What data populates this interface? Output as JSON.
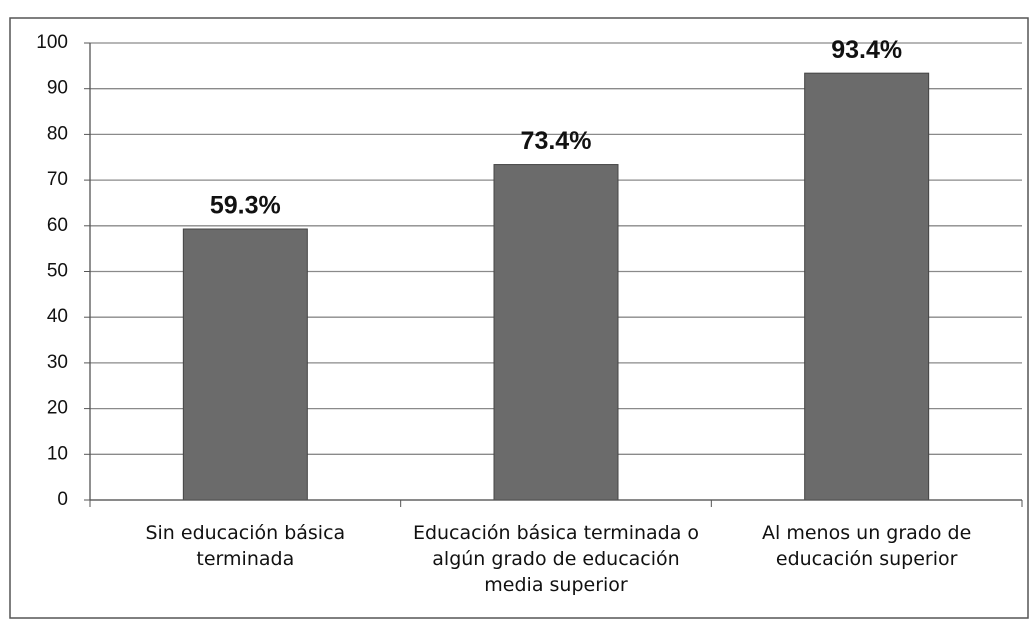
{
  "chart_data": {
    "type": "bar",
    "categories": [
      "Sin educación básica terminada",
      "Educación básica terminada o algún grado de educación media superior",
      "Al menos un grado de educación superior"
    ],
    "values": [
      59.3,
      73.4,
      93.4
    ],
    "value_labels": [
      "59.3%",
      "73.4%",
      "93.4%"
    ],
    "color": "#6b6b6b",
    "ylim": [
      0,
      100
    ],
    "yticks": [
      0,
      10,
      20,
      30,
      40,
      50,
      60,
      70,
      80,
      90,
      100
    ],
    "grid": true
  }
}
